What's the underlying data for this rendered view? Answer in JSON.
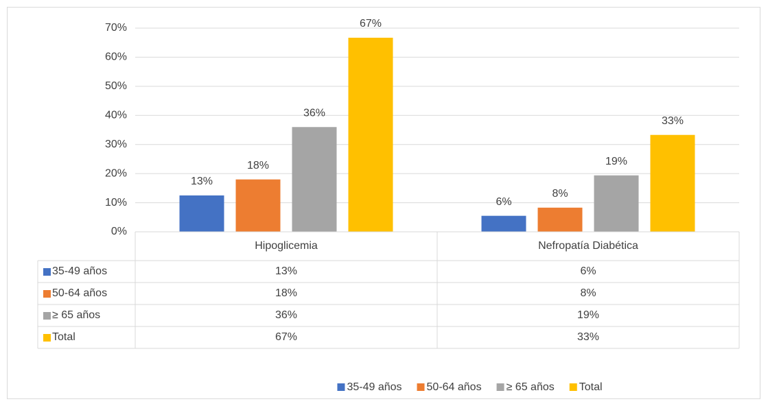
{
  "chart_data": {
    "type": "bar",
    "categories": [
      "Hipoglicemia",
      "Nefropatía Diabética"
    ],
    "series": [
      {
        "name": "35-49 años",
        "color": "#4472c4",
        "values": [
          12.5,
          5.5
        ],
        "value_labels": [
          "13%",
          "6%"
        ]
      },
      {
        "name": "50-64 años",
        "color": "#ed7d31",
        "values": [
          18,
          8.3
        ],
        "value_labels": [
          "18%",
          "8%"
        ]
      },
      {
        "name": "≥ 65 años",
        "color": "#a5a5a5",
        "values": [
          36,
          19.4
        ],
        "value_labels": [
          "36%",
          "19%"
        ]
      },
      {
        "name": "Total",
        "color": "#ffc000",
        "values": [
          66.7,
          33.3
        ],
        "value_labels": [
          "67%",
          "33%"
        ]
      }
    ],
    "ylim": [
      0,
      70
    ],
    "yticks": [
      {
        "value": 0,
        "label": "0%"
      },
      {
        "value": 10,
        "label": "10%"
      },
      {
        "value": 20,
        "label": "20%"
      },
      {
        "value": 30,
        "label": "30%"
      },
      {
        "value": 40,
        "label": "40%"
      },
      {
        "value": 50,
        "label": "50%"
      },
      {
        "value": 60,
        "label": "60%"
      },
      {
        "value": 70,
        "label": "70%"
      }
    ],
    "grid": true,
    "legend": "bottom",
    "data_table": true
  }
}
